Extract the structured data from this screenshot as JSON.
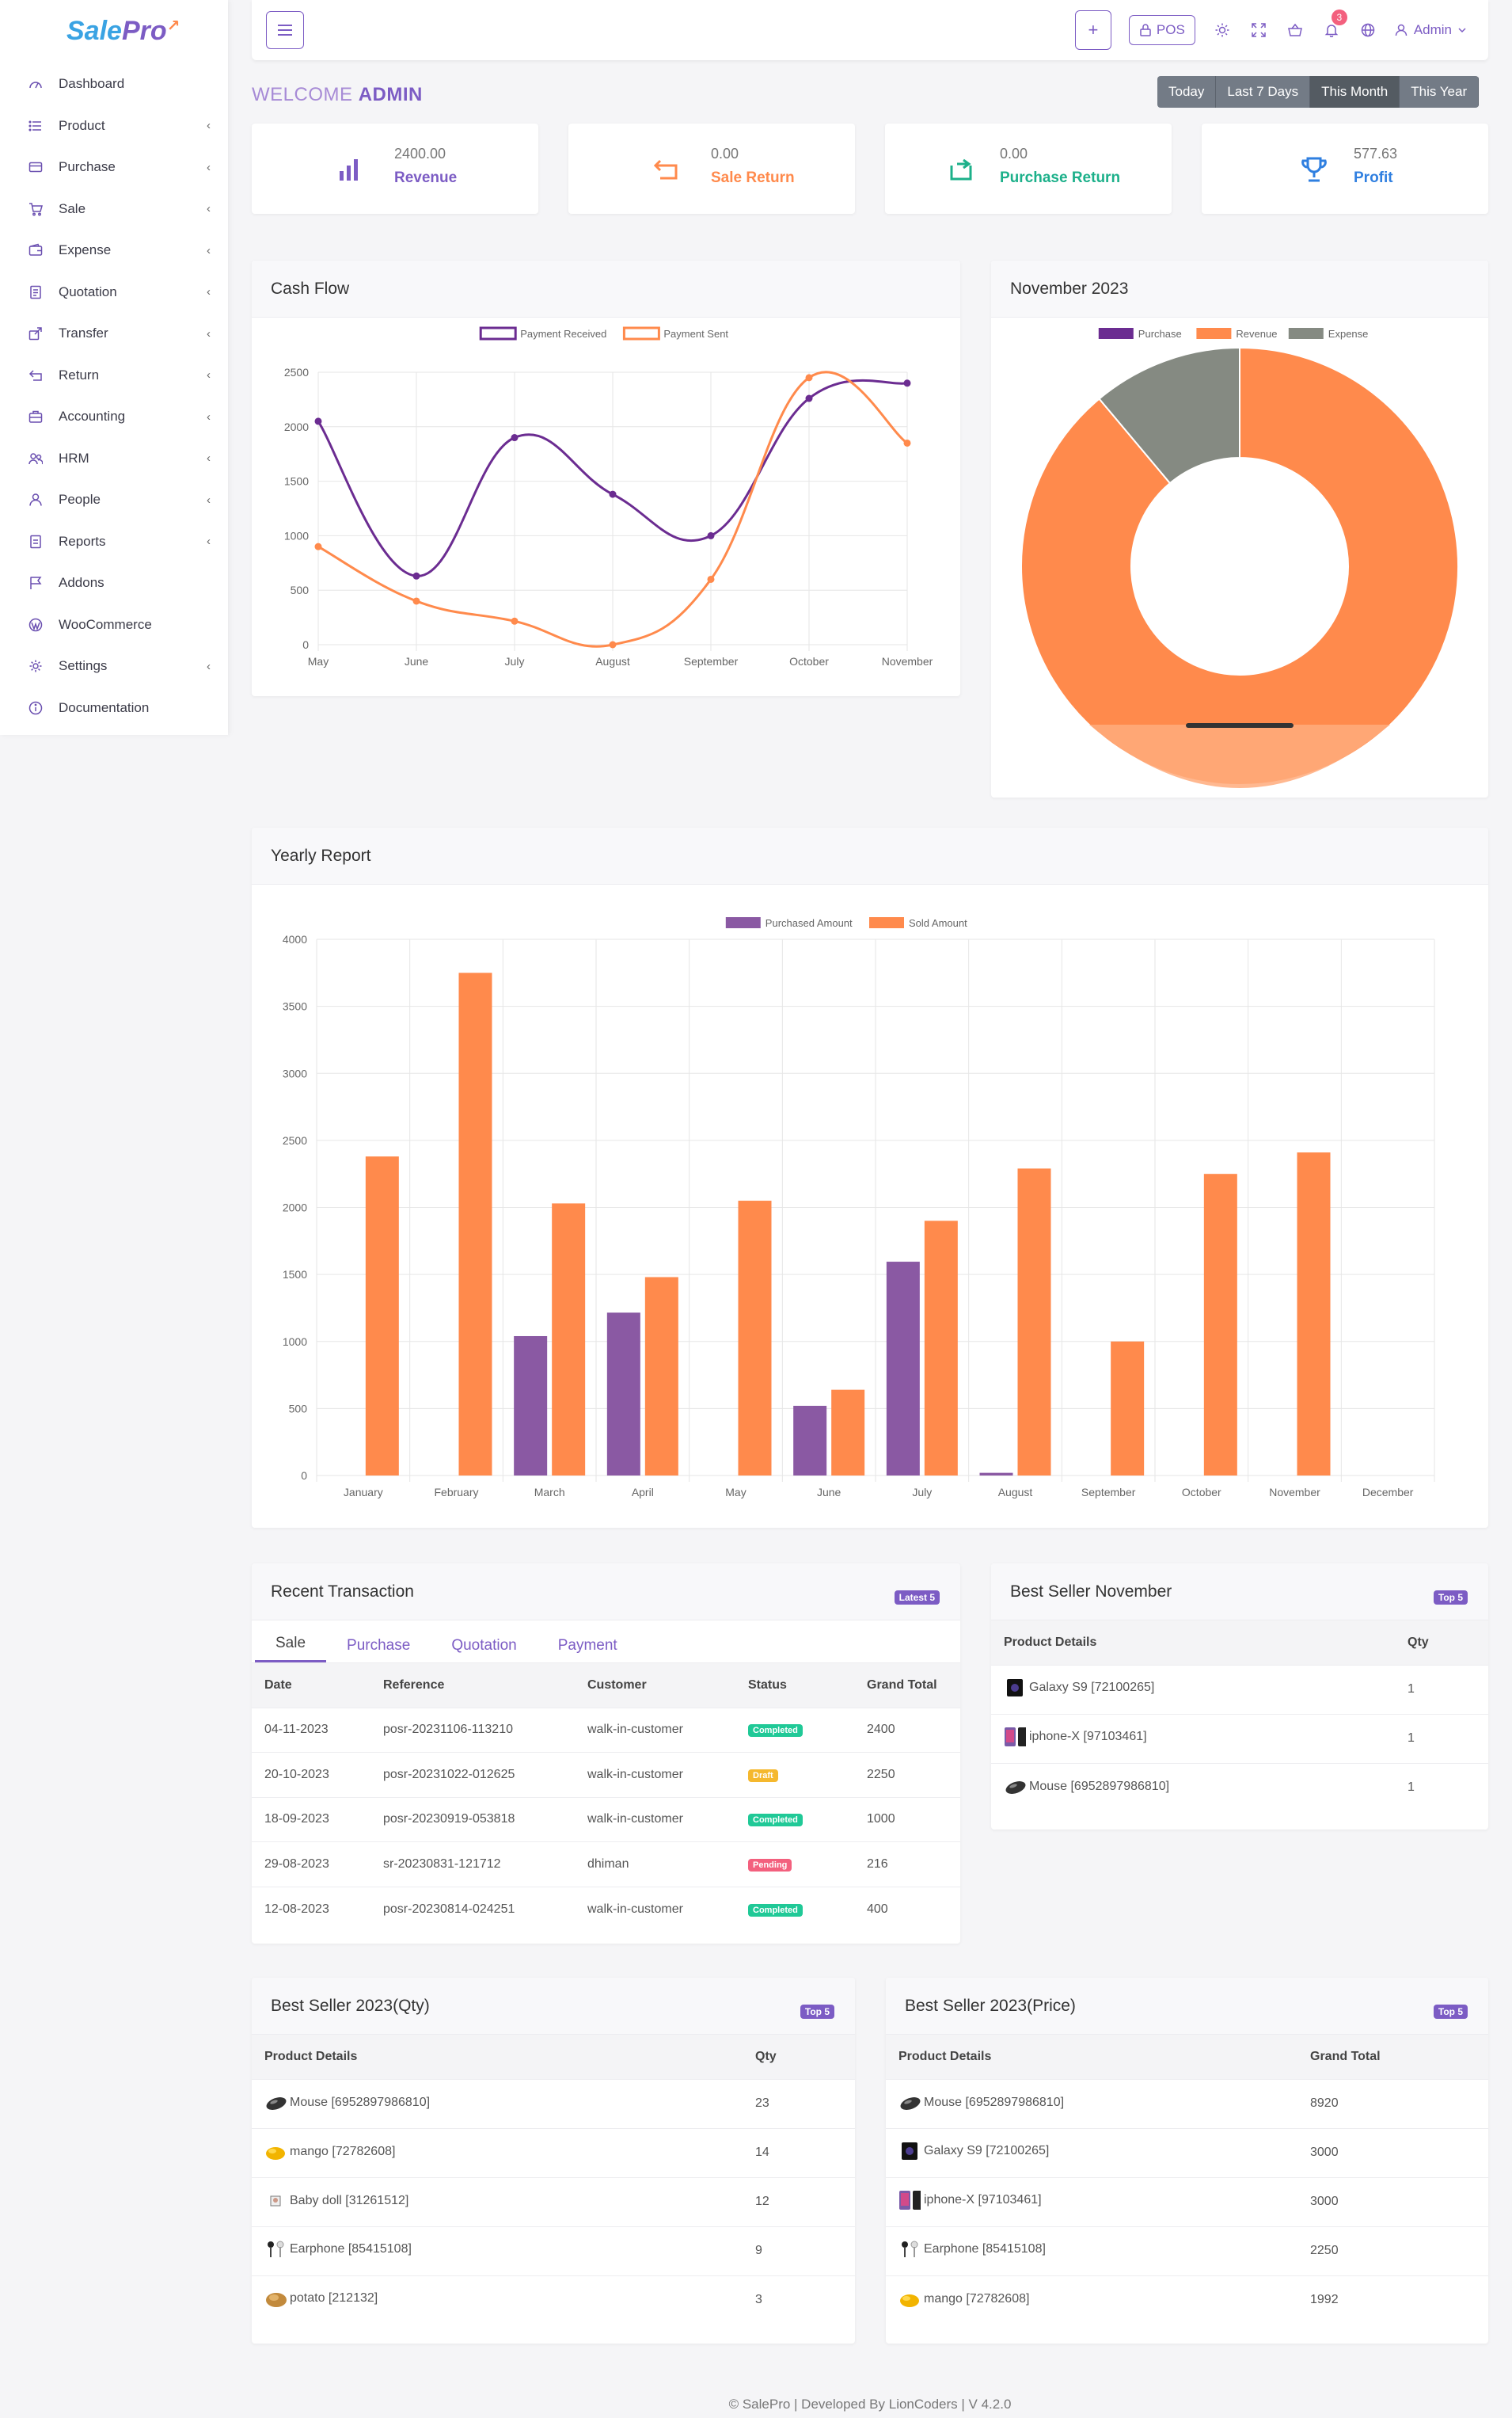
{
  "app": {
    "logo_main": "Sale",
    "logo_accent": "Pro"
  },
  "sidebar": {
    "items": [
      {
        "label": "Dashboard",
        "icon": "dashboard-icon",
        "has_children": false
      },
      {
        "label": "Product",
        "icon": "list-icon",
        "has_children": true
      },
      {
        "label": "Purchase",
        "icon": "card-icon",
        "has_children": true
      },
      {
        "label": "Sale",
        "icon": "cart-icon",
        "has_children": true
      },
      {
        "label": "Expense",
        "icon": "wallet-icon",
        "has_children": true
      },
      {
        "label": "Quotation",
        "icon": "document-icon",
        "has_children": true
      },
      {
        "label": "Transfer",
        "icon": "share-icon",
        "has_children": true
      },
      {
        "label": "Return",
        "icon": "return-icon",
        "has_children": true
      },
      {
        "label": "Accounting",
        "icon": "briefcase-icon",
        "has_children": true
      },
      {
        "label": "HRM",
        "icon": "users-icon",
        "has_children": true
      },
      {
        "label": "People",
        "icon": "user-icon",
        "has_children": true
      },
      {
        "label": "Reports",
        "icon": "report-icon",
        "has_children": true
      },
      {
        "label": "Addons",
        "icon": "flag-icon",
        "has_children": false
      },
      {
        "label": "WooCommerce",
        "icon": "wordpress-icon",
        "has_children": false
      },
      {
        "label": "Settings",
        "icon": "gear-icon",
        "has_children": true
      },
      {
        "label": "Documentation",
        "icon": "info-icon",
        "has_children": false
      }
    ]
  },
  "topbar": {
    "plus_label": "+",
    "pos_label": "POS",
    "notification_count": "3",
    "user_label": "Admin"
  },
  "welcome": {
    "prefix": "WELCOME",
    "name": "ADMIN"
  },
  "date_filter": {
    "options": [
      "Today",
      "Last 7 Days",
      "This Month",
      "This Year"
    ],
    "active": "This Month"
  },
  "stats": [
    {
      "value": "2400.00",
      "label": "Revenue",
      "color": "#7c5cc4",
      "icon": "bar-chart-icon"
    },
    {
      "value": "0.00",
      "label": "Sale Return",
      "color": "#ff8a4c",
      "icon": "return-arrow-icon"
    },
    {
      "value": "0.00",
      "label": "Purchase Return",
      "color": "#1cb08a",
      "icon": "refresh-box-icon"
    },
    {
      "value": "577.63",
      "label": "Profit",
      "color": "#2f7fe0",
      "icon": "trophy-icon"
    }
  ],
  "cash_flow": {
    "title": "Cash Flow"
  },
  "month_panel": {
    "title": "November 2023"
  },
  "yearly": {
    "title": "Yearly Report"
  },
  "chart_data": [
    {
      "type": "line",
      "categories": [
        "May",
        "June",
        "July",
        "August",
        "September",
        "October",
        "November"
      ],
      "series": [
        {
          "name": "Payment Received",
          "color": "#6b2c91",
          "values": [
            2050,
            630,
            1900,
            1380,
            1000,
            2260,
            2400
          ]
        },
        {
          "name": "Payment Sent",
          "color": "#ff8a4c",
          "values": [
            900,
            400,
            216,
            0,
            600,
            2450,
            1850
          ]
        }
      ],
      "ylim": [
        0,
        2500
      ],
      "yticks": [
        0,
        500,
        1000,
        1500,
        2000,
        2500
      ],
      "grid": true,
      "legend": "top-center"
    },
    {
      "type": "pie",
      "style": "doughnut",
      "labels": [
        "Purchase",
        "Revenue",
        "Expense"
      ],
      "values": [
        0,
        2400,
        300
      ],
      "colors": [
        "#6b2c91",
        "#ff8a4c",
        "#858a82"
      ],
      "legend": "top-center"
    },
    {
      "type": "bar",
      "categories": [
        "January",
        "February",
        "March",
        "April",
        "May",
        "June",
        "July",
        "August",
        "September",
        "October",
        "November",
        "December"
      ],
      "series": [
        {
          "name": "Purchased Amount",
          "color": "#8a59a3",
          "values": [
            0,
            0,
            1040,
            1215,
            0,
            520,
            1595,
            20,
            0,
            0,
            0,
            0
          ]
        },
        {
          "name": "Sold Amount",
          "color": "#ff8a4c",
          "values": [
            2380,
            3750,
            2030,
            1480,
            2050,
            640,
            1900,
            2290,
            1000,
            2250,
            2410,
            0
          ]
        }
      ],
      "ylim": [
        0,
        4000
      ],
      "yticks": [
        0,
        500,
        1000,
        1500,
        2000,
        2500,
        3000,
        3500,
        4000
      ],
      "grid": true,
      "legend": "top-center"
    }
  ],
  "recent": {
    "title": "Recent Transaction",
    "badge": "Latest 5",
    "tabs": [
      "Sale",
      "Purchase",
      "Quotation",
      "Payment"
    ],
    "headers": [
      "Date",
      "Reference",
      "Customer",
      "Status",
      "Grand Total"
    ],
    "rows": [
      {
        "date": "04-11-2023",
        "ref": "posr-20231106-113210",
        "customer": "walk-in-customer",
        "status": "Completed",
        "status_color": "#20c997",
        "total": "2400"
      },
      {
        "date": "20-10-2023",
        "ref": "posr-20231022-012625",
        "customer": "walk-in-customer",
        "status": "Draft",
        "status_color": "#f5b82e",
        "total": "2250"
      },
      {
        "date": "18-09-2023",
        "ref": "posr-20230919-053818",
        "customer": "walk-in-customer",
        "status": "Completed",
        "status_color": "#20c997",
        "total": "1000"
      },
      {
        "date": "29-08-2023",
        "ref": "sr-20230831-121712",
        "customer": "dhiman",
        "status": "Pending",
        "status_color": "#f3607e",
        "total": "216"
      },
      {
        "date": "12-08-2023",
        "ref": "posr-20230814-024251",
        "customer": "walk-in-customer",
        "status": "Completed",
        "status_color": "#20c997",
        "total": "400"
      }
    ]
  },
  "best_month": {
    "title": "Best Seller November",
    "badge": "Top 5",
    "headers": [
      "Product Details",
      "Qty"
    ],
    "rows": [
      {
        "product": "Galaxy S9 [72100265]",
        "icon": "phone-icon",
        "value": "1"
      },
      {
        "product": "iphone-X [97103461]",
        "icon": "iphone-icon",
        "value": "1"
      },
      {
        "product": "Mouse [6952897986810]",
        "icon": "mouse-icon",
        "value": "1"
      }
    ]
  },
  "best_qty": {
    "title": "Best Seller 2023(Qty)",
    "badge": "Top 5",
    "headers": [
      "Product Details",
      "Qty"
    ],
    "rows": [
      {
        "product": "Mouse [6952897986810]",
        "icon": "mouse-icon",
        "value": "23"
      },
      {
        "product": "mango [72782608]",
        "icon": "mango-icon",
        "value": "14"
      },
      {
        "product": "Baby doll [31261512]",
        "icon": "doll-icon",
        "value": "12"
      },
      {
        "product": "Earphone [85415108]",
        "icon": "earphone-icon",
        "value": "9"
      },
      {
        "product": "potato [212132]",
        "icon": "potato-icon",
        "value": "3"
      }
    ]
  },
  "best_price": {
    "title": "Best Seller 2023(Price)",
    "badge": "Top 5",
    "headers": [
      "Product Details",
      "Grand Total"
    ],
    "rows": [
      {
        "product": "Mouse [6952897986810]",
        "icon": "mouse-icon",
        "value": "8920"
      },
      {
        "product": "Galaxy S9 [72100265]",
        "icon": "phone-icon",
        "value": "3000"
      },
      {
        "product": "iphone-X [97103461]",
        "icon": "iphone-icon",
        "value": "3000"
      },
      {
        "product": "Earphone [85415108]",
        "icon": "earphone-icon",
        "value": "2250"
      },
      {
        "product": "mango [72782608]",
        "icon": "mango-icon",
        "value": "1992"
      }
    ]
  },
  "footer": {
    "text": "© SalePro | Developed By LionCoders | V 4.2.0"
  }
}
